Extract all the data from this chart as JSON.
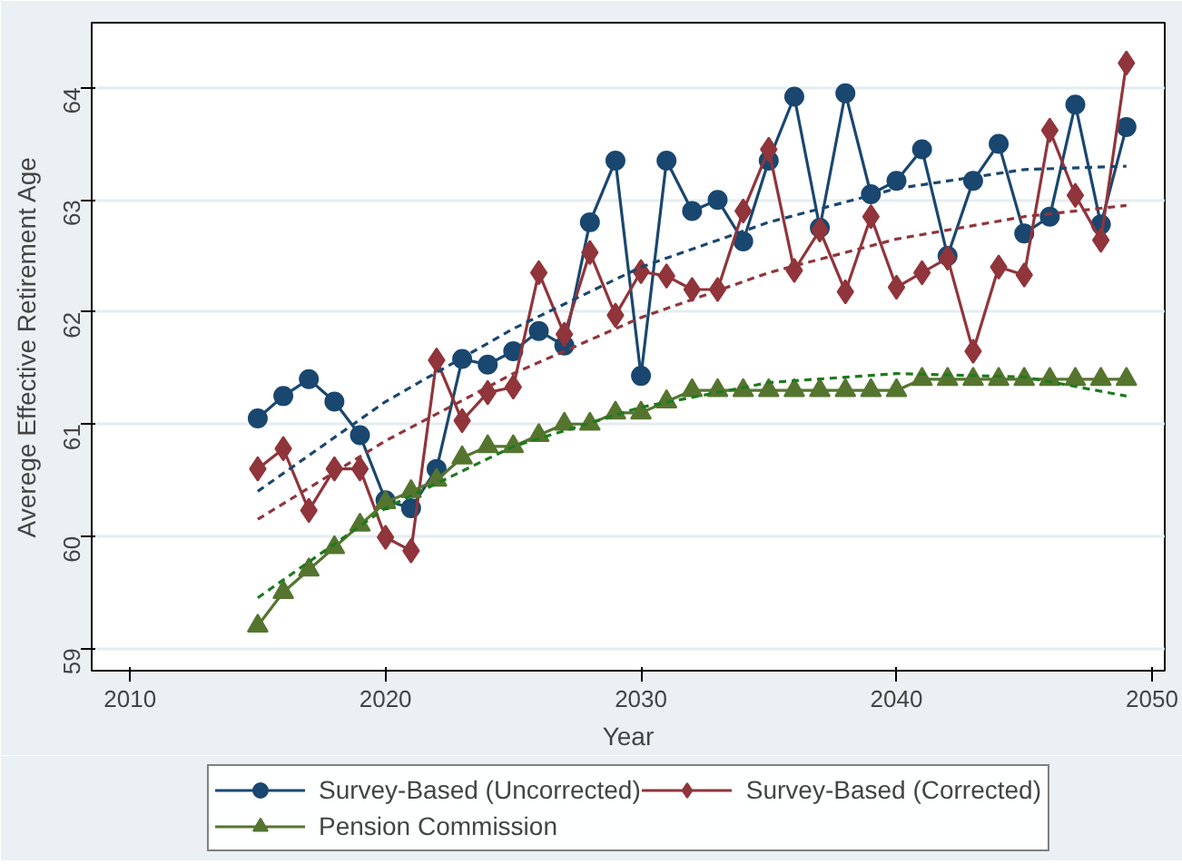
{
  "chart_data": {
    "type": "line",
    "xlabel": "Year",
    "ylabel": "Averege Effective Retirement Age",
    "x": [
      2015,
      2016,
      2017,
      2018,
      2019,
      2020,
      2021,
      2022,
      2023,
      2024,
      2025,
      2026,
      2027,
      2028,
      2029,
      2030,
      2031,
      2032,
      2033,
      2034,
      2035,
      2036,
      2037,
      2038,
      2039,
      2040,
      2041,
      2042,
      2043,
      2044,
      2045,
      2046,
      2047,
      2048,
      2049
    ],
    "series": [
      {
        "name": "Survey-Based (Uncorrected)",
        "color": "#1a476f",
        "marker": "circle",
        "values": [
          61.05,
          61.25,
          61.4,
          61.2,
          60.9,
          60.32,
          60.25,
          60.6,
          61.58,
          61.53,
          61.65,
          61.83,
          61.7,
          62.8,
          63.35,
          61.43,
          63.35,
          62.9,
          63.0,
          62.63,
          63.35,
          63.92,
          62.75,
          63.95,
          63.05,
          63.17,
          63.45,
          62.5,
          63.17,
          63.5,
          62.7,
          62.85,
          63.85,
          62.78,
          63.65
        ]
      },
      {
        "name": "Survey-Based (Corrected)",
        "color": "#90353b",
        "marker": "diamond",
        "values": [
          60.6,
          60.78,
          60.23,
          60.6,
          60.6,
          59.99,
          59.87,
          61.57,
          61.03,
          61.28,
          61.33,
          62.35,
          61.8,
          62.53,
          61.97,
          62.36,
          62.32,
          62.2,
          62.2,
          62.9,
          63.45,
          62.37,
          62.73,
          62.18,
          62.85,
          62.22,
          62.35,
          62.48,
          61.65,
          62.4,
          62.33,
          63.62,
          63.04,
          62.64,
          64.22
        ]
      },
      {
        "name": "Pension Commission",
        "color": "#55752f",
        "marker": "triangle",
        "values": [
          59.2,
          59.5,
          59.7,
          59.9,
          60.1,
          60.3,
          60.4,
          60.5,
          60.7,
          60.8,
          60.8,
          60.9,
          61.0,
          61.0,
          61.1,
          61.1,
          61.2,
          61.3,
          61.3,
          61.3,
          61.3,
          61.3,
          61.3,
          61.3,
          61.3,
          61.3,
          61.4,
          61.4,
          61.4,
          61.4,
          61.4,
          61.4,
          61.4,
          61.4,
          61.4
        ]
      },
      {
        "color": "#1a476f",
        "line_style": "dashed",
        "marker": "none",
        "x": [
          2015,
          2020,
          2025,
          2030,
          2035,
          2040,
          2045,
          2049
        ],
        "values": [
          60.4,
          61.2,
          61.85,
          62.4,
          62.8,
          63.1,
          63.27,
          63.3
        ]
      },
      {
        "color": "#90353b",
        "line_style": "dashed",
        "marker": "none",
        "x": [
          2015,
          2020,
          2025,
          2030,
          2035,
          2040,
          2045,
          2049
        ],
        "values": [
          60.15,
          60.85,
          61.45,
          61.95,
          62.35,
          62.65,
          62.85,
          62.95
        ]
      },
      {
        "color": "#1e7a1e",
        "line_style": "dashed",
        "marker": "none",
        "x": [
          2015,
          2020,
          2025,
          2030,
          2035,
          2040,
          2045,
          2049
        ],
        "values": [
          59.45,
          60.25,
          60.8,
          61.15,
          61.37,
          61.45,
          61.42,
          61.25
        ]
      }
    ],
    "xlim": [
      2008.5,
      2050.5
    ],
    "ylim": [
      58.8,
      64.58
    ],
    "xticks": [
      2010,
      2020,
      2030,
      2040,
      2050
    ],
    "yticks": [
      59,
      60,
      61,
      62,
      63,
      64
    ],
    "grid": "y",
    "legend": "bottom",
    "line_style": "solid"
  }
}
